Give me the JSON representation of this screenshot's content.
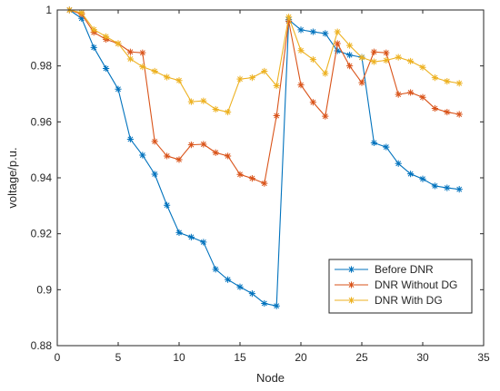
{
  "chart_data": {
    "type": "line",
    "xlabel": "Node",
    "ylabel": "voltage/p.u.",
    "xlim": [
      0,
      35
    ],
    "ylim": [
      0.88,
      1.0
    ],
    "xticks": [
      0,
      5,
      10,
      15,
      20,
      25,
      30,
      35
    ],
    "yticks": [
      0.88,
      0.9,
      0.92,
      0.94,
      0.96,
      0.98,
      1.0
    ],
    "xtick_labels": [
      "0",
      "5",
      "10",
      "15",
      "20",
      "25",
      "30",
      "35"
    ],
    "ytick_labels": [
      "0.88",
      "0.9",
      "0.92",
      "0.94",
      "0.96",
      "0.98",
      "1"
    ],
    "grid": false,
    "legend_position": "bottom-right",
    "marker": "asterisk",
    "x": [
      1,
      2,
      3,
      4,
      5,
      6,
      7,
      8,
      9,
      10,
      11,
      12,
      13,
      14,
      15,
      16,
      17,
      18,
      19,
      20,
      21,
      22,
      23,
      24,
      25,
      26,
      27,
      28,
      29,
      30,
      31,
      32,
      33
    ],
    "series": [
      {
        "name": "Before DNR",
        "color": "#0072bd",
        "values": [
          1.0,
          0.997,
          0.9866,
          0.9791,
          0.9717,
          0.9538,
          0.9481,
          0.9413,
          0.9302,
          0.9204,
          0.9188,
          0.917,
          0.9073,
          0.9036,
          0.901,
          0.8986,
          0.8951,
          0.8942,
          0.9965,
          0.9929,
          0.9922,
          0.9916,
          0.9854,
          0.9839,
          0.9831,
          0.9525,
          0.951,
          0.9451,
          0.9414,
          0.9396,
          0.9371,
          0.9364,
          0.9359
        ]
      },
      {
        "name": "DNR Without DG",
        "color": "#d95319",
        "values": [
          1.0,
          0.9985,
          0.992,
          0.9895,
          0.988,
          0.985,
          0.9847,
          0.953,
          0.9478,
          0.9465,
          0.9518,
          0.952,
          0.949,
          0.9478,
          0.9412,
          0.9398,
          0.938,
          0.9622,
          0.996,
          0.9732,
          0.967,
          0.962,
          0.988,
          0.98,
          0.974,
          0.985,
          0.9847,
          0.9698,
          0.9705,
          0.9688,
          0.9648,
          0.9635,
          0.9627
        ]
      },
      {
        "name": "DNR With DG",
        "color": "#edb120",
        "values": [
          1.0,
          0.999,
          0.993,
          0.9905,
          0.988,
          0.9825,
          0.9797,
          0.9781,
          0.976,
          0.9748,
          0.9672,
          0.9675,
          0.9645,
          0.9635,
          0.9753,
          0.9758,
          0.9781,
          0.9729,
          0.9975,
          0.9855,
          0.9823,
          0.9773,
          0.9922,
          0.9873,
          0.983,
          0.9815,
          0.982,
          0.9831,
          0.9817,
          0.9795,
          0.9758,
          0.9745,
          0.9738
        ]
      }
    ]
  }
}
